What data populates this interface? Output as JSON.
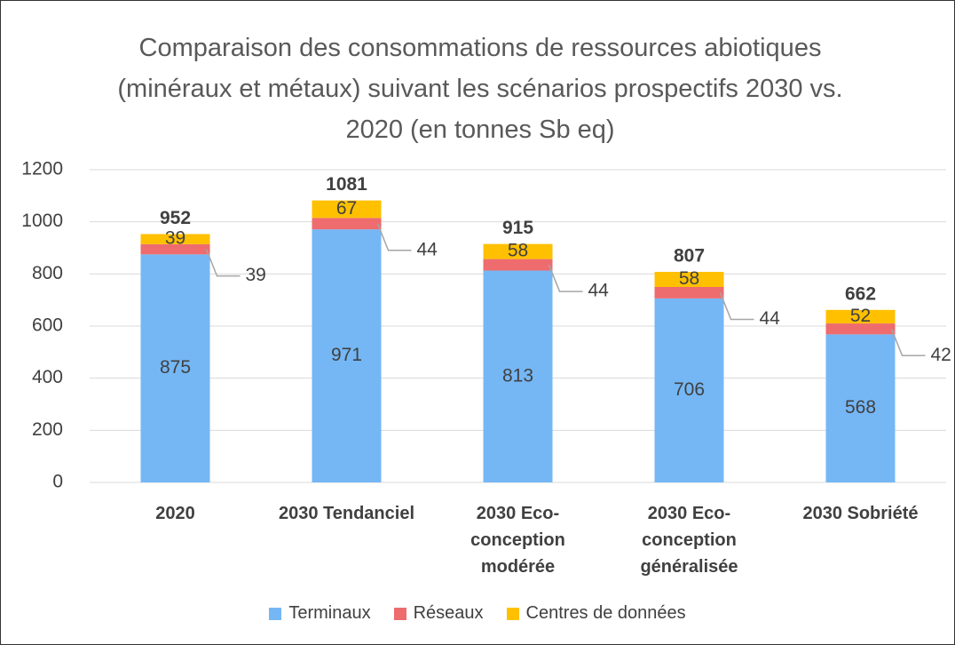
{
  "chart_data": {
    "type": "stacked_bar",
    "title": "Comparaison des consommations de ressources abiotiques (minéraux et métaux) suivant les scénarios prospectifs 2030 vs. 2020 (en tonnes Sb eq)",
    "categories": [
      "2020",
      "2030 Tendanciel",
      "2030 Eco-conception modérée",
      "2030 Eco-conception généralisée",
      "2030 Sobriété"
    ],
    "series": [
      {
        "name": "Terminaux",
        "color": "#75b7f5",
        "values": [
          875,
          971,
          813,
          706,
          568
        ]
      },
      {
        "name": "Réseaux",
        "color": "#ee6b6e",
        "values": [
          39,
          44,
          44,
          44,
          42
        ]
      },
      {
        "name": "Centres de données",
        "color": "#ffc000",
        "values": [
          39,
          67,
          58,
          58,
          52
        ]
      }
    ],
    "totals": [
      952,
      1081,
      915,
      807,
      662
    ],
    "ylim": [
      0,
      1200
    ],
    "yticks": [
      0,
      200,
      400,
      600,
      800,
      1000,
      1200
    ],
    "grid": true,
    "legend": "bottom"
  }
}
